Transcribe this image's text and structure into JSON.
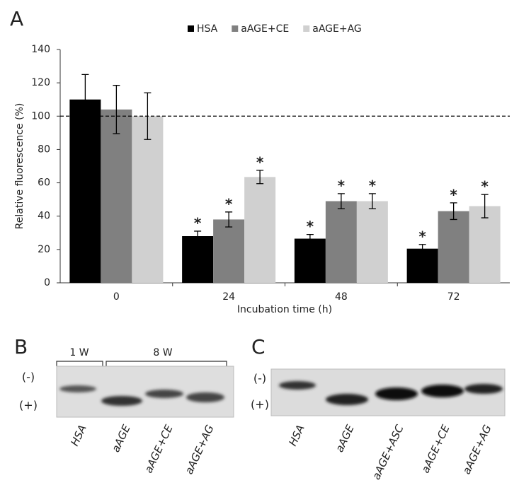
{
  "chart_data": {
    "type": "bar",
    "x_label": "Incubation time (h)",
    "y_label": "Relative fluorescence (%)",
    "categories": [
      "0",
      "24",
      "48",
      "72"
    ],
    "series": [
      {
        "name": "HSA",
        "color": "#000000",
        "values": [
          110,
          28,
          26.5,
          20.5
        ],
        "errors": [
          15,
          3,
          2.5,
          2.5
        ],
        "annotations": [
          null,
          "*",
          "*",
          "*"
        ]
      },
      {
        "name": "aAGE+CE",
        "color": "#808080",
        "values": [
          104,
          38,
          49,
          43
        ],
        "errors": [
          14.5,
          4.5,
          4.5,
          5
        ],
        "annotations": [
          null,
          "*",
          "*",
          "*"
        ]
      },
      {
        "name": "aAGE+AG",
        "color": "#d0d0d0",
        "values": [
          100,
          63.5,
          49,
          46
        ],
        "errors": [
          14,
          4,
          4.5,
          7
        ],
        "annotations": [
          null,
          "*",
          "*",
          "*"
        ]
      }
    ],
    "reference_line": 100,
    "ylim": [
      0,
      140
    ],
    "yticks": [
      0,
      20,
      40,
      60,
      80,
      100,
      120,
      140
    ],
    "legend": "top"
  },
  "panel_a": {
    "label": "A"
  },
  "panel_b": {
    "label": "B",
    "groups": [
      "1 W",
      "8 W"
    ],
    "polarity": [
      "(-)",
      "(+)"
    ],
    "lanes": [
      "HSA",
      "aAGE",
      "aAGE+CE",
      "aAGE+AG"
    ]
  },
  "panel_c": {
    "label": "C",
    "polarity": [
      "(-)",
      "(+)"
    ],
    "lanes": [
      "HSA",
      "aAGE",
      "aAGE+ASC",
      "aAGE+CE",
      "aAGE+AG"
    ]
  }
}
